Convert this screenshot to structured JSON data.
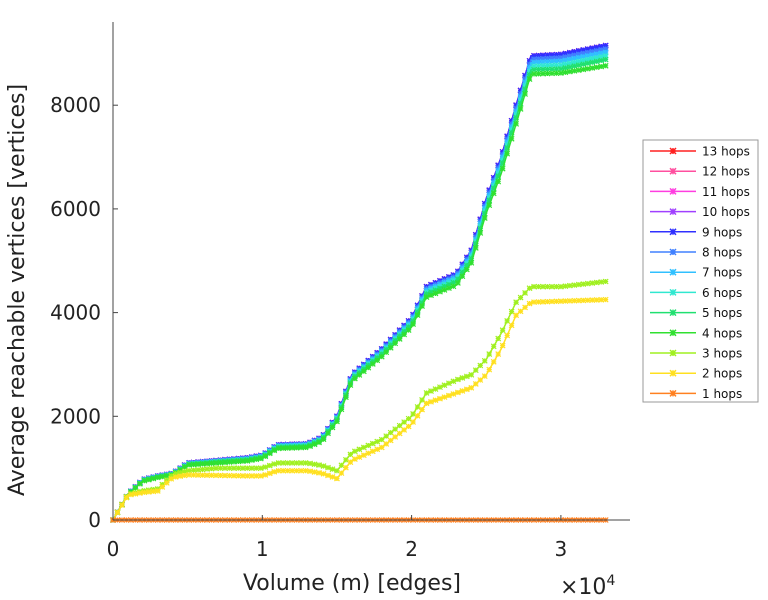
{
  "chart_data": {
    "type": "line",
    "title": "",
    "xlabel": "Volume (m) [edges]",
    "ylabel": "Average reachable vertices [vertices]",
    "x_multiplier_label": "×10",
    "x_multiplier_exp": "4",
    "xlim": [
      0,
      3.46
    ],
    "ylim": [
      0,
      9600
    ],
    "xticks": [
      "0",
      "1",
      "2",
      "3"
    ],
    "xtick_values": [
      0,
      1,
      2,
      3
    ],
    "yticks": [
      "0",
      "2000",
      "4000",
      "6000",
      "8000"
    ],
    "ytick_values": [
      0,
      2000,
      4000,
      6000,
      8000
    ],
    "grid": false,
    "legend_position": "right",
    "x": [
      0,
      0.1,
      0.2,
      0.3,
      0.4,
      0.5,
      0.7,
      0.9,
      1.0,
      1.1,
      1.3,
      1.4,
      1.5,
      1.6,
      1.8,
      2.0,
      2.1,
      2.3,
      2.4,
      2.5,
      2.6,
      2.7,
      2.8,
      3.0,
      3.3
    ],
    "series": [
      {
        "name": "13 hops",
        "color": "#ff2020",
        "values": [
          0,
          500,
          780,
          850,
          900,
          1100,
          1150,
          1200,
          1250,
          1450,
          1470,
          1600,
          2000,
          2800,
          3300,
          3900,
          4500,
          4750,
          5200,
          6200,
          7000,
          8000,
          8950,
          8980,
          9150
        ]
      },
      {
        "name": "12 hops",
        "color": "#ff4f9f",
        "values": [
          0,
          500,
          780,
          850,
          900,
          1100,
          1150,
          1200,
          1250,
          1450,
          1470,
          1600,
          2000,
          2800,
          3300,
          3900,
          4500,
          4750,
          5200,
          6200,
          7000,
          8000,
          8950,
          8980,
          9150
        ]
      },
      {
        "name": "11 hops",
        "color": "#ff3de0",
        "values": [
          0,
          500,
          780,
          850,
          900,
          1100,
          1150,
          1200,
          1250,
          1450,
          1470,
          1600,
          2000,
          2800,
          3300,
          3900,
          4500,
          4750,
          5200,
          6200,
          7000,
          8000,
          8950,
          8980,
          9150
        ]
      },
      {
        "name": "10 hops",
        "color": "#a040ff",
        "values": [
          0,
          500,
          780,
          850,
          900,
          1100,
          1150,
          1200,
          1250,
          1450,
          1470,
          1600,
          2000,
          2800,
          3300,
          3900,
          4500,
          4750,
          5200,
          6200,
          7000,
          8000,
          8950,
          8980,
          9150
        ]
      },
      {
        "name": "9 hops",
        "color": "#3030ff",
        "values": [
          0,
          500,
          780,
          850,
          900,
          1100,
          1150,
          1200,
          1250,
          1450,
          1470,
          1600,
          2000,
          2800,
          3300,
          3900,
          4500,
          4750,
          5200,
          6200,
          7000,
          8000,
          8950,
          8980,
          9150
        ]
      },
      {
        "name": "8 hops",
        "color": "#4080ff",
        "values": [
          0,
          498,
          775,
          845,
          895,
          1092,
          1142,
          1190,
          1240,
          1440,
          1460,
          1588,
          1985,
          2780,
          3275,
          3870,
          4465,
          4715,
          5160,
          6155,
          6950,
          7940,
          8885,
          8915,
          9085
        ]
      },
      {
        "name": "7 hops",
        "color": "#30c0ff",
        "values": [
          0,
          495,
          770,
          840,
          890,
          1085,
          1135,
          1180,
          1230,
          1430,
          1450,
          1575,
          1970,
          2760,
          3250,
          3840,
          4430,
          4680,
          5120,
          6110,
          6900,
          7880,
          8820,
          8850,
          9020
        ]
      },
      {
        "name": "6 hops",
        "color": "#30e8d0",
        "values": [
          0,
          492,
          765,
          835,
          885,
          1078,
          1128,
          1170,
          1220,
          1415,
          1435,
          1562,
          1955,
          2740,
          3225,
          3810,
          4395,
          4640,
          5080,
          6060,
          6845,
          7820,
          8750,
          8775,
          8950
        ]
      },
      {
        "name": "5 hops",
        "color": "#20e070",
        "values": [
          0,
          490,
          760,
          830,
          880,
          1070,
          1120,
          1160,
          1210,
          1400,
          1420,
          1550,
          1940,
          2720,
          3200,
          3780,
          4360,
          4600,
          5040,
          6010,
          6790,
          7760,
          8680,
          8700,
          8880
        ]
      },
      {
        "name": "4 hops",
        "color": "#30e030",
        "values": [
          0,
          485,
          750,
          820,
          870,
          1060,
          1100,
          1140,
          1190,
          1380,
          1400,
          1520,
          1900,
          2680,
          3150,
          3720,
          4300,
          4530,
          4960,
          5920,
          6680,
          7640,
          8600,
          8620,
          8760
        ]
      },
      {
        "name": "3 hops",
        "color": "#a0f020",
        "values": [
          0,
          500,
          560,
          600,
          880,
          950,
          1000,
          1000,
          1000,
          1100,
          1100,
          1050,
          950,
          1300,
          1550,
          2000,
          2450,
          2700,
          2800,
          3100,
          3600,
          4200,
          4500,
          4500,
          4600
        ]
      },
      {
        "name": "2 hops",
        "color": "#ffe020",
        "values": [
          0,
          480,
          530,
          560,
          820,
          870,
          860,
          850,
          850,
          950,
          950,
          900,
          800,
          1150,
          1400,
          1850,
          2250,
          2450,
          2550,
          2800,
          3300,
          3950,
          4200,
          4220,
          4250
        ]
      },
      {
        "name": "1 hops",
        "color": "#ff8020",
        "values": [
          0,
          0,
          0,
          0,
          0,
          0,
          0,
          0,
          0,
          0,
          0,
          0,
          0,
          0,
          0,
          0,
          0,
          0,
          0,
          0,
          0,
          0,
          0,
          0,
          0
        ]
      }
    ]
  }
}
